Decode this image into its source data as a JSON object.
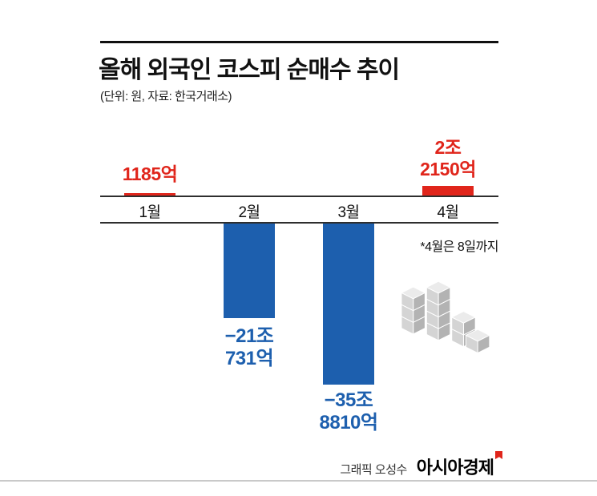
{
  "header": {
    "title": "올해 외국인 코스피 순매수 추이",
    "unit_source": "(단위: 원, 자료: 한국거래소)"
  },
  "chart_data": {
    "type": "bar",
    "title": "올해 외국인 코스피 순매수 추이",
    "unit": "억 원",
    "source": "한국거래소",
    "categories": [
      "1월",
      "2월",
      "3월",
      "4월"
    ],
    "values": [
      1185,
      -210731,
      -358810,
      22150
    ],
    "value_labels": [
      [
        "1185억"
      ],
      [
        "−21조",
        "731억"
      ],
      [
        "−35조",
        "8810억"
      ],
      [
        "2조",
        "2150억"
      ]
    ],
    "annotation": "*4월은 8일까지",
    "positive_color": "#e0251b",
    "negative_color": "#1d5fae",
    "baseline": 0,
    "legend": false,
    "grid": false
  },
  "footer": {
    "credit": "그래픽 오성수",
    "brand": "아시아경제"
  },
  "icons": {
    "buildings": "isometric-gray-buildings-illustration",
    "brand_flag": "red-flag-mark"
  }
}
